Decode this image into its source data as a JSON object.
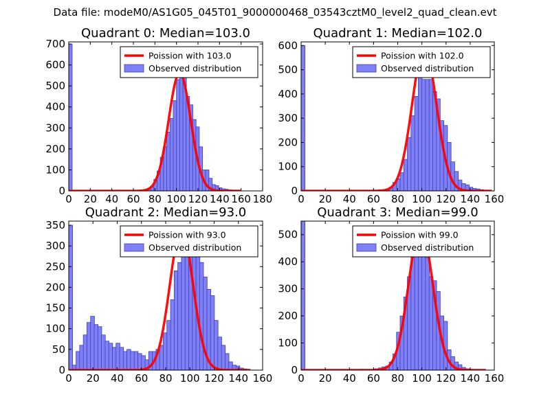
{
  "suptitle": "Data file: modeM0/AS1G05_045T01_9000000468_03543cztM0_level2_quad_clean.evt",
  "colors": {
    "bar_fill": "#8080f6",
    "bar_edge": "#3c3cb4",
    "curve": "#ff0000",
    "axis": "#000000"
  },
  "legend": {
    "observed_label": "Observed distribution"
  },
  "chart_data": [
    {
      "type": "bar",
      "title": "Quadrant 0: Median=103.0",
      "legend_curve_label": "Poission with 103.0",
      "xlim": [
        0,
        180
      ],
      "ylim": [
        0,
        710
      ],
      "xticks": [
        0,
        20,
        40,
        60,
        80,
        100,
        120,
        140,
        160,
        180
      ],
      "yticks": [
        0,
        100,
        200,
        300,
        400,
        500,
        600,
        700
      ],
      "bin_width": 3.2,
      "bins": [
        [
          0,
          700
        ],
        [
          67,
          3
        ],
        [
          70,
          5
        ],
        [
          73,
          10
        ],
        [
          76,
          20
        ],
        [
          79,
          55
        ],
        [
          82,
          95
        ],
        [
          85,
          160
        ],
        [
          88,
          210
        ],
        [
          91,
          280
        ],
        [
          94,
          345
        ],
        [
          97,
          430
        ],
        [
          100,
          530
        ],
        [
          103,
          640
        ],
        [
          106,
          540
        ],
        [
          109,
          450
        ],
        [
          112,
          410
        ],
        [
          115,
          340
        ],
        [
          118,
          305
        ],
        [
          121,
          210
        ],
        [
          124,
          100
        ],
        [
          127,
          100
        ],
        [
          130,
          60
        ],
        [
          133,
          30
        ],
        [
          136,
          25
        ],
        [
          139,
          15
        ],
        [
          142,
          10
        ],
        [
          145,
          8
        ],
        [
          148,
          5
        ],
        [
          151,
          3
        ],
        [
          154,
          2
        ],
        [
          157,
          2
        ]
      ],
      "poisson": {
        "mean": 103.0,
        "peak": 563,
        "sigma": 10.15,
        "x_end": 160
      }
    },
    {
      "type": "bar",
      "title": "Quadrant 1: Median=102.0",
      "legend_curve_label": "Poission with 102.0",
      "xlim": [
        0,
        160
      ],
      "ylim": [
        0,
        615
      ],
      "xticks": [
        0,
        20,
        40,
        60,
        80,
        100,
        120,
        140,
        160
      ],
      "yticks": [
        0,
        100,
        200,
        300,
        400,
        500,
        600
      ],
      "bin_width": 3.2,
      "bins": [
        [
          0,
          600
        ],
        [
          55,
          2
        ],
        [
          64,
          5
        ],
        [
          70,
          8
        ],
        [
          73,
          15
        ],
        [
          76,
          35
        ],
        [
          79,
          50
        ],
        [
          82,
          75
        ],
        [
          85,
          130
        ],
        [
          88,
          220
        ],
        [
          91,
          310
        ],
        [
          94,
          390
        ],
        [
          97,
          470
        ],
        [
          100,
          460
        ],
        [
          103,
          460
        ],
        [
          106,
          460
        ],
        [
          109,
          410
        ],
        [
          112,
          380
        ],
        [
          115,
          290
        ],
        [
          118,
          270
        ],
        [
          121,
          200
        ],
        [
          124,
          120
        ],
        [
          127,
          80
        ],
        [
          130,
          45
        ],
        [
          133,
          30
        ],
        [
          136,
          25
        ],
        [
          139,
          15
        ],
        [
          142,
          10
        ],
        [
          145,
          8
        ],
        [
          148,
          5
        ],
        [
          151,
          3
        ],
        [
          154,
          2
        ]
      ],
      "poisson": {
        "mean": 102.0,
        "peak": 590,
        "sigma": 10.1,
        "x_end": 158
      }
    },
    {
      "type": "bar",
      "title": "Quadrant 2: Median=93.0",
      "legend_curve_label": "Poission with 93.0",
      "xlim": [
        0,
        160
      ],
      "ylim": [
        0,
        360
      ],
      "xticks": [
        0,
        20,
        40,
        60,
        80,
        100,
        120,
        140,
        160
      ],
      "yticks": [
        0,
        50,
        100,
        150,
        200,
        250,
        300,
        350
      ],
      "bin_width": 3.2,
      "bins": [
        [
          0,
          350
        ],
        [
          3,
          12
        ],
        [
          6,
          45
        ],
        [
          9,
          60
        ],
        [
          12,
          85
        ],
        [
          15,
          115
        ],
        [
          18,
          130
        ],
        [
          21,
          110
        ],
        [
          24,
          105
        ],
        [
          27,
          85
        ],
        [
          30,
          70
        ],
        [
          33,
          65
        ],
        [
          36,
          55
        ],
        [
          39,
          65
        ],
        [
          42,
          55
        ],
        [
          45,
          45
        ],
        [
          48,
          50
        ],
        [
          51,
          45
        ],
        [
          54,
          45
        ],
        [
          57,
          40
        ],
        [
          60,
          35
        ],
        [
          63,
          25
        ],
        [
          66,
          45
        ],
        [
          69,
          45
        ],
        [
          72,
          50
        ],
        [
          75,
          60
        ],
        [
          78,
          90
        ],
        [
          81,
          120
        ],
        [
          84,
          170
        ],
        [
          87,
          240
        ],
        [
          90,
          260
        ],
        [
          93,
          275
        ],
        [
          96,
          290
        ],
        [
          99,
          340
        ],
        [
          102,
          335
        ],
        [
          105,
          330
        ],
        [
          108,
          260
        ],
        [
          111,
          225
        ],
        [
          114,
          195
        ],
        [
          117,
          180
        ],
        [
          120,
          120
        ],
        [
          123,
          80
        ],
        [
          126,
          60
        ],
        [
          129,
          40
        ],
        [
          132,
          20
        ],
        [
          135,
          12
        ],
        [
          138,
          10
        ],
        [
          141,
          5
        ],
        [
          144,
          3
        ]
      ],
      "poisson": {
        "mean": 93.0,
        "peak": 339,
        "sigma": 9.64,
        "x_end": 150
      }
    },
    {
      "type": "bar",
      "title": "Quadrant 3: Median=99.0",
      "legend_curve_label": "Poission with 99.0",
      "xlim": [
        0,
        160
      ],
      "ylim": [
        0,
        550
      ],
      "xticks": [
        0,
        20,
        40,
        60,
        80,
        100,
        120,
        140,
        160
      ],
      "yticks": [
        0,
        100,
        200,
        300,
        400,
        500
      ],
      "bin_width": 3.2,
      "bins": [
        [
          0,
          550
        ],
        [
          49,
          3
        ],
        [
          61,
          5
        ],
        [
          64,
          8
        ],
        [
          67,
          12
        ],
        [
          70,
          15
        ],
        [
          73,
          30
        ],
        [
          76,
          60
        ],
        [
          79,
          140
        ],
        [
          82,
          200
        ],
        [
          85,
          270
        ],
        [
          88,
          345
        ],
        [
          91,
          420
        ],
        [
          94,
          510
        ],
        [
          97,
          515
        ],
        [
          100,
          500
        ],
        [
          103,
          415
        ],
        [
          106,
          345
        ],
        [
          109,
          330
        ],
        [
          112,
          290
        ],
        [
          115,
          200
        ],
        [
          118,
          180
        ],
        [
          121,
          75
        ],
        [
          124,
          50
        ],
        [
          127,
          30
        ],
        [
          130,
          20
        ],
        [
          133,
          10
        ],
        [
          136,
          5
        ],
        [
          139,
          3
        ],
        [
          142,
          2
        ]
      ],
      "poisson": {
        "mean": 99.0,
        "peak": 528,
        "sigma": 9.95,
        "x_end": 153
      }
    }
  ]
}
